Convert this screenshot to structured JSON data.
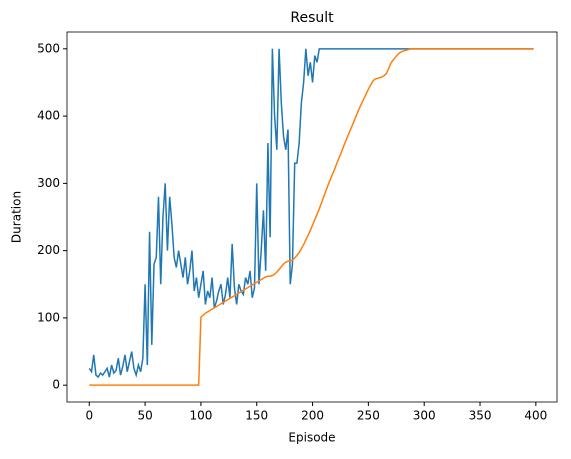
{
  "chart_data": {
    "type": "line",
    "title": "Result",
    "x_label": "Episode",
    "y_label": "Duration",
    "x": [
      0,
      2,
      4,
      6,
      8,
      10,
      12,
      14,
      16,
      18,
      20,
      22,
      24,
      26,
      28,
      30,
      32,
      34,
      36,
      38,
      40,
      42,
      44,
      46,
      48,
      50,
      52,
      54,
      56,
      58,
      60,
      62,
      64,
      66,
      68,
      70,
      72,
      74,
      76,
      78,
      80,
      82,
      84,
      86,
      88,
      90,
      92,
      94,
      96,
      98,
      100,
      102,
      104,
      106,
      108,
      110,
      112,
      114,
      116,
      118,
      120,
      122,
      124,
      126,
      128,
      130,
      132,
      134,
      136,
      138,
      140,
      142,
      144,
      146,
      148,
      150,
      152,
      154,
      156,
      158,
      160,
      162,
      164,
      166,
      168,
      170,
      172,
      174,
      176,
      178,
      180,
      182,
      184,
      186,
      188,
      190,
      192,
      194,
      196,
      198,
      200,
      202,
      204,
      206,
      208,
      210,
      212,
      214,
      216,
      218,
      220,
      222,
      224,
      226,
      228,
      230,
      232,
      234,
      236,
      238,
      240,
      242,
      244,
      246,
      248,
      250,
      252,
      254,
      256,
      258,
      260,
      262,
      264,
      266,
      268,
      270,
      272,
      274,
      276,
      278,
      280,
      282,
      284,
      286,
      288,
      290,
      292,
      294,
      296,
      298,
      300,
      302,
      304,
      306,
      308,
      310,
      312,
      314,
      316,
      318,
      320,
      322,
      324,
      326,
      328,
      330,
      332,
      334,
      336,
      338,
      340,
      342,
      344,
      346,
      348,
      350,
      352,
      354,
      356,
      358,
      360,
      362,
      364,
      366,
      368,
      370,
      372,
      374,
      376,
      378,
      380,
      382,
      384,
      386,
      388,
      390,
      392,
      394,
      396,
      398
    ],
    "series": [
      {
        "color": "#1f77b4",
        "values": [
          25,
          20,
          45,
          15,
          12,
          18,
          15,
          20,
          25,
          12,
          30,
          18,
          22,
          40,
          15,
          28,
          45,
          20,
          35,
          50,
          25,
          15,
          30,
          20,
          40,
          150,
          30,
          228,
          60,
          180,
          190,
          280,
          150,
          250,
          300,
          200,
          280,
          240,
          190,
          175,
          200,
          180,
          160,
          190,
          150,
          170,
          200,
          140,
          160,
          130,
          150,
          170,
          120,
          140,
          130,
          160,
          115,
          125,
          140,
          150,
          120,
          135,
          160,
          130,
          210,
          145,
          120,
          150,
          140,
          135,
          160,
          150,
          170,
          130,
          145,
          300,
          150,
          200,
          260,
          170,
          360,
          220,
          500,
          400,
          350,
          500,
          420,
          370,
          350,
          380,
          150,
          180,
          330,
          330,
          360,
          420,
          450,
          500,
          460,
          480,
          450,
          490,
          480,
          500,
          500,
          500,
          500,
          500,
          500,
          500,
          500,
          500,
          500,
          500,
          500,
          500,
          500,
          500,
          500,
          500,
          500,
          500,
          500,
          500,
          500,
          500,
          500,
          500,
          500,
          500,
          500,
          500,
          500,
          500,
          500,
          500,
          500,
          500,
          500,
          500,
          500,
          500,
          500,
          500,
          500,
          500,
          500,
          500,
          500,
          500,
          500,
          500,
          500,
          500,
          500,
          500,
          500,
          500,
          500,
          500,
          500,
          500,
          500,
          500,
          500,
          500,
          500,
          500,
          500,
          500,
          500,
          500,
          500,
          500,
          500,
          500,
          500,
          500,
          500,
          500,
          500,
          500,
          500,
          500,
          500,
          500,
          500,
          500,
          500,
          500,
          500,
          500,
          500,
          500,
          500,
          500,
          500,
          500,
          500,
          500
        ]
      },
      {
        "color": "#ff7f0e",
        "values": [
          0,
          0,
          0,
          0,
          0,
          0,
          0,
          0,
          0,
          0,
          0,
          0,
          0,
          0,
          0,
          0,
          0,
          0,
          0,
          0,
          0,
          0,
          0,
          0,
          0,
          0,
          0,
          0,
          0,
          0,
          0,
          0,
          0,
          0,
          0,
          0,
          0,
          0,
          0,
          0,
          0,
          0,
          0,
          0,
          0,
          0,
          0,
          0,
          0,
          0,
          101,
          104,
          107,
          109,
          111,
          113,
          115,
          117,
          119,
          121,
          123,
          125,
          127,
          129,
          131,
          133,
          135,
          137,
          139,
          141,
          143,
          145,
          147,
          149,
          151,
          153,
          155,
          157,
          159,
          161,
          162,
          162,
          163,
          165,
          168,
          172,
          176,
          180,
          183,
          184,
          185,
          186,
          189,
          193,
          197,
          203,
          209,
          216,
          223,
          230,
          238,
          246,
          254,
          262,
          271,
          280,
          289,
          298,
          306,
          314,
          322,
          331,
          339,
          347,
          356,
          364,
          372,
          380,
          388,
          396,
          404,
          412,
          419,
          426,
          433,
          440,
          446,
          452,
          455,
          456,
          457,
          458,
          460,
          463,
          470,
          478,
          483,
          487,
          491,
          494,
          496,
          497,
          498,
          499,
          500,
          500,
          500,
          500,
          500,
          500,
          500,
          500,
          500,
          500,
          500,
          500,
          500,
          500,
          500,
          500,
          500,
          500,
          500,
          500,
          500,
          500,
          500,
          500,
          500,
          500,
          500,
          500,
          500,
          500,
          500,
          500,
          500,
          500,
          500,
          500,
          500,
          500,
          500,
          500,
          500,
          500,
          500,
          500,
          500,
          500,
          500,
          500,
          500,
          500,
          500,
          500,
          500,
          500,
          500,
          500
        ]
      }
    ],
    "xlim": [
      -19.95,
      418.95
    ],
    "ylim": [
      -25,
      525
    ],
    "xticks": [
      0,
      50,
      100,
      150,
      200,
      250,
      300,
      350,
      400
    ],
    "yticks": [
      0,
      100,
      200,
      300,
      400,
      500
    ],
    "grid": false
  }
}
